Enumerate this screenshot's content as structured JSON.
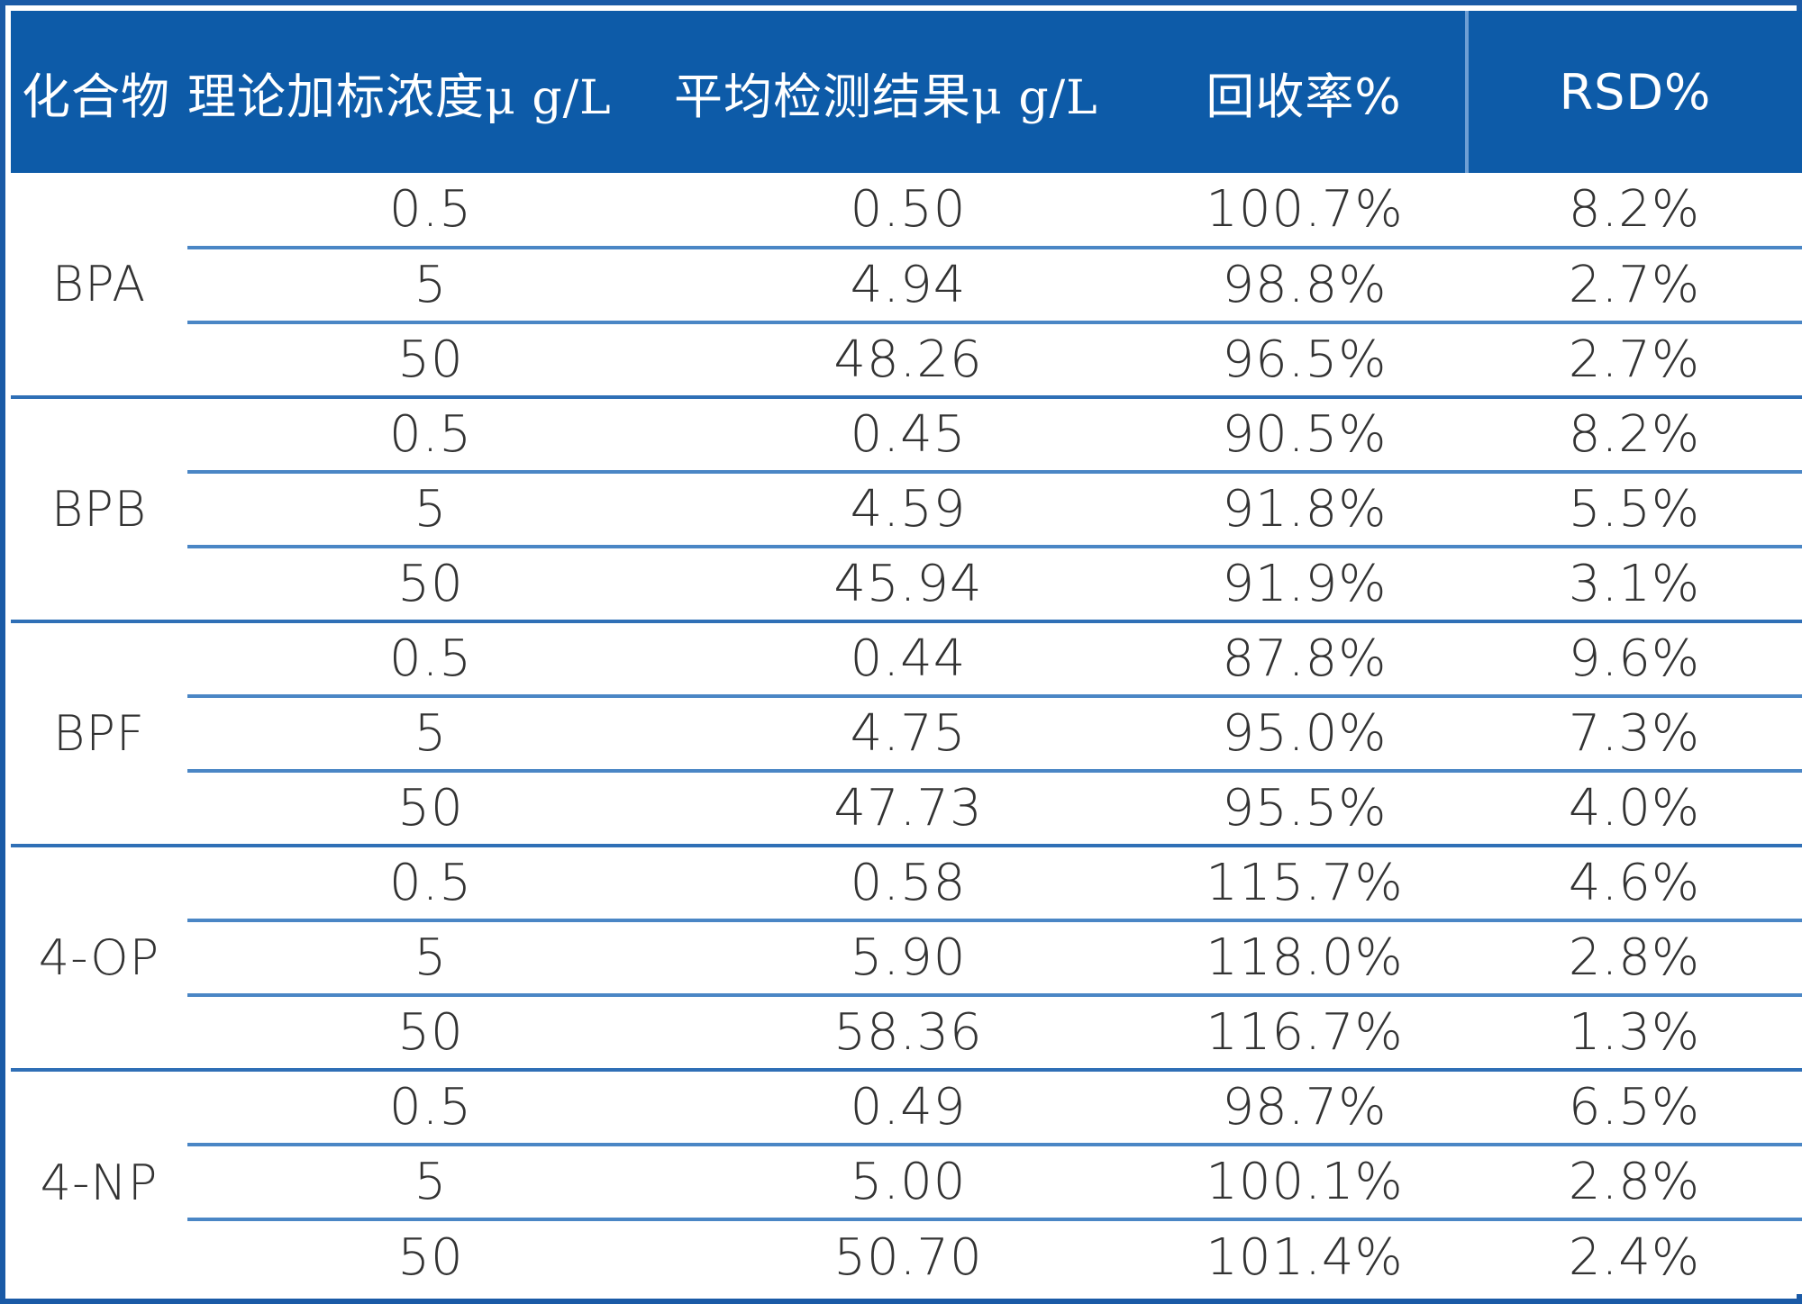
{
  "header": {
    "compound": "化合物",
    "spike_label": "理论加标浓度",
    "spike_unit": "μ g/L",
    "mean_label": "平均检测结果",
    "mean_unit": "μ g/L",
    "recovery": "回收率%",
    "rsd": "RSD%"
  },
  "colors": {
    "header_bg": "#0d5ba8",
    "header_text": "#ffffff",
    "row_divider": "#4a86c5",
    "body_text": "#333333"
  },
  "groups": [
    {
      "compound": "BPA",
      "rows": [
        {
          "spike": "0.5",
          "mean": "0.50",
          "recovery": "100.7%",
          "rsd": "8.2%"
        },
        {
          "spike": "5",
          "mean": "4.94",
          "recovery": "98.8%",
          "rsd": "2.7%"
        },
        {
          "spike": "50",
          "mean": "48.26",
          "recovery": "96.5%",
          "rsd": "2.7%"
        }
      ]
    },
    {
      "compound": "BPB",
      "rows": [
        {
          "spike": "0.5",
          "mean": "0.45",
          "recovery": "90.5%",
          "rsd": "8.2%"
        },
        {
          "spike": "5",
          "mean": "4.59",
          "recovery": "91.8%",
          "rsd": "5.5%"
        },
        {
          "spike": "50",
          "mean": "45.94",
          "recovery": "91.9%",
          "rsd": "3.1%"
        }
      ]
    },
    {
      "compound": "BPF",
      "rows": [
        {
          "spike": "0.5",
          "mean": "0.44",
          "recovery": "87.8%",
          "rsd": "9.6%"
        },
        {
          "spike": "5",
          "mean": "4.75",
          "recovery": "95.0%",
          "rsd": "7.3%"
        },
        {
          "spike": "50",
          "mean": "47.73",
          "recovery": "95.5%",
          "rsd": "4.0%"
        }
      ]
    },
    {
      "compound": "4-OP",
      "rows": [
        {
          "spike": "0.5",
          "mean": "0.58",
          "recovery": "115.7%",
          "rsd": "4.6%"
        },
        {
          "spike": "5",
          "mean": "5.90",
          "recovery": "118.0%",
          "rsd": "2.8%"
        },
        {
          "spike": "50",
          "mean": "58.36",
          "recovery": "116.7%",
          "rsd": "1.3%"
        }
      ]
    },
    {
      "compound": "4-NP",
      "rows": [
        {
          "spike": "0.5",
          "mean": "0.49",
          "recovery": "98.7%",
          "rsd": "6.5%"
        },
        {
          "spike": "5",
          "mean": "5.00",
          "recovery": "100.1%",
          "rsd": "2.8%"
        },
        {
          "spike": "50",
          "mean": "50.70",
          "recovery": "101.4%",
          "rsd": "2.4%"
        }
      ]
    }
  ]
}
